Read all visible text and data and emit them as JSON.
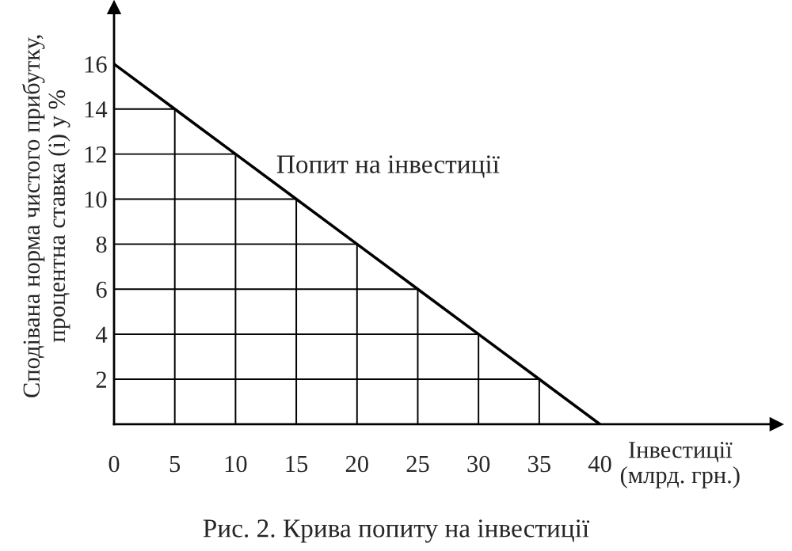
{
  "chart_data": {
    "type": "line",
    "title": "Рис. 2. Крива попиту на інвестиції",
    "xlabel": "Інвестиції\n(млрд. грн.)",
    "ylabel": "Сподівана норма чистого прибутку,\nпроцентна ставка (і) у %",
    "x": [
      0,
      5,
      10,
      15,
      20,
      25,
      30,
      35,
      40
    ],
    "series": [
      {
        "color": "#000000",
        "values": [
          16,
          14,
          12,
          10,
          8,
          6,
          4,
          2,
          0
        ]
      },
      {
        "color": "#000000",
        "x": [
          0,
          5
        ],
        "values": [
          14,
          14
        ]
      },
      {
        "color": "#000000",
        "x": [
          0,
          10
        ],
        "values": [
          12,
          12
        ]
      },
      {
        "color": "#000000",
        "x": [
          0,
          15
        ],
        "values": [
          10,
          10
        ]
      },
      {
        "color": "#000000",
        "x": [
          0,
          20
        ],
        "values": [
          8,
          8
        ]
      },
      {
        "color": "#000000",
        "x": [
          0,
          25
        ],
        "values": [
          6,
          6
        ]
      },
      {
        "color": "#000000",
        "x": [
          0,
          30
        ],
        "values": [
          4,
          4
        ]
      },
      {
        "color": "#000000",
        "x": [
          0,
          35
        ],
        "values": [
          2,
          2
        ]
      },
      {
        "color": "#000000",
        "x": [
          5,
          5
        ],
        "values": [
          0,
          14
        ]
      },
      {
        "color": "#000000",
        "x": [
          10,
          10
        ],
        "values": [
          0,
          12
        ]
      },
      {
        "color": "#000000",
        "x": [
          15,
          15
        ],
        "values": [
          0,
          10
        ]
      },
      {
        "color": "#000000",
        "x": [
          20,
          20
        ],
        "values": [
          0,
          8
        ]
      },
      {
        "color": "#000000",
        "x": [
          25,
          25
        ],
        "values": [
          0,
          6
        ]
      },
      {
        "color": "#000000",
        "x": [
          30,
          30
        ],
        "values": [
          0,
          4
        ]
      },
      {
        "color": "#000000",
        "x": [
          35,
          35
        ],
        "values": [
          0,
          2
        ]
      }
    ],
    "annotations": [
      "Попит на інвестиції"
    ],
    "xlim": [
      0,
      54.5
    ],
    "ylim": [
      0,
      18.5
    ],
    "xticks": [
      0,
      5,
      10,
      15,
      20,
      25,
      30,
      35,
      40
    ],
    "yticks": [
      2,
      4,
      6,
      8,
      10,
      12,
      14,
      16
    ],
    "legend": false,
    "marker": "none",
    "line_style": "solid"
  }
}
